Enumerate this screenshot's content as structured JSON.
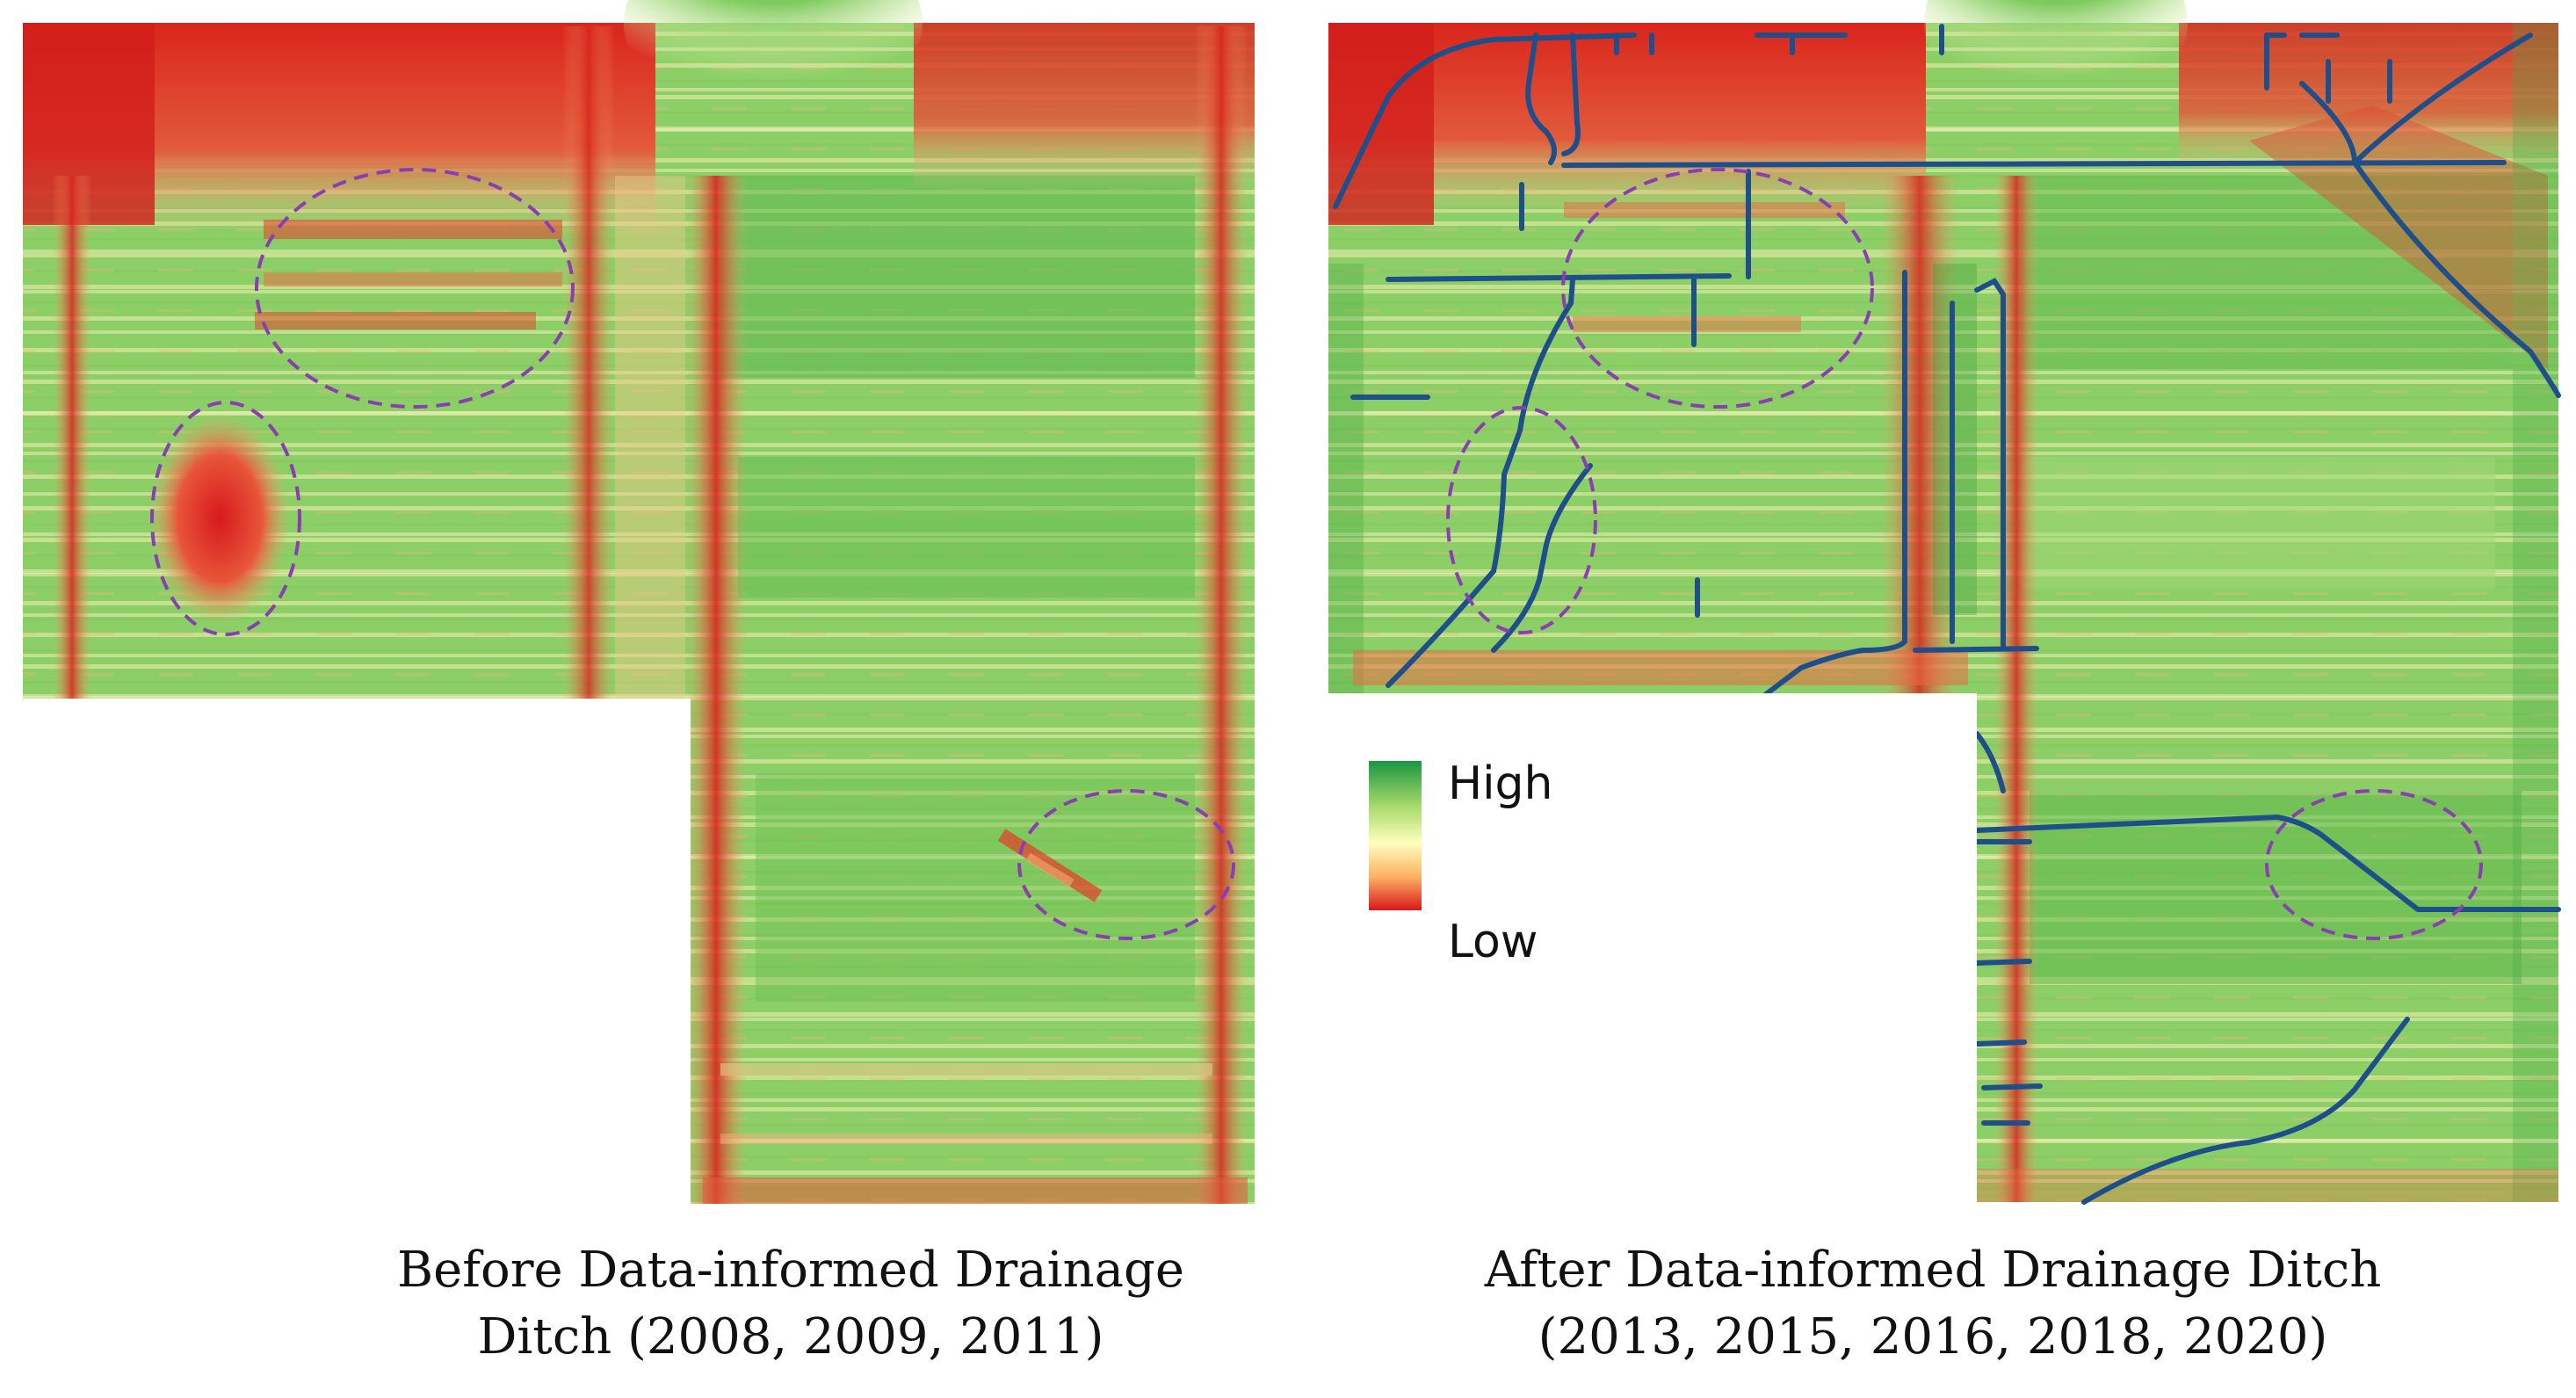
{
  "panels": [
    {
      "id": "before",
      "caption_line1": "Before Data-informed Drainage",
      "caption_line2": "Ditch (2008, 2009, 2011)"
    },
    {
      "id": "after",
      "caption_line1": "After Data-informed Drainage Ditch",
      "caption_line2": "(2013, 2015, 2016, 2018, 2020)"
    }
  ],
  "legend": {
    "high_label": "High",
    "low_label": "Low",
    "gradient_colors": [
      "#1a9641",
      "#a6d96a",
      "#ffffbf",
      "#fdae61",
      "#d7191c"
    ]
  },
  "colors": {
    "high": "#1e9a3c",
    "mid_green": "#8fd06a",
    "light": "#f3f3b0",
    "orange": "#f4a46a",
    "low": "#d7261e",
    "ellipse": "#8a3fb0",
    "ditch": "#1f4f8a"
  }
}
